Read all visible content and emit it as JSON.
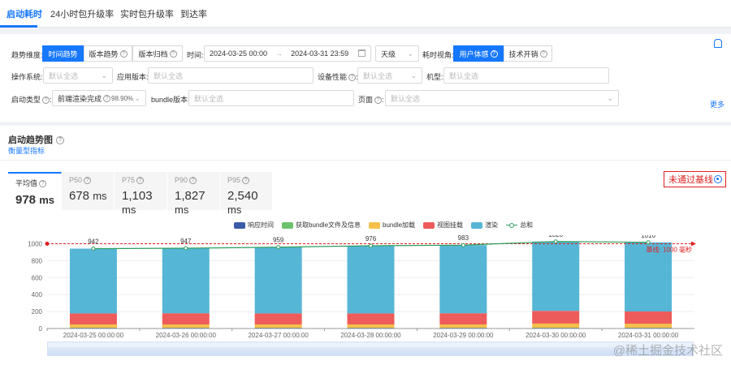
{
  "tabs": [
    "启动耗时",
    "24小时包升级率",
    "实时包升级率",
    "到达率"
  ],
  "filters": {
    "trend_dim_label": "趋势维度:",
    "trend_dims": [
      "时间趋势",
      "版本趋势",
      "版本归档"
    ],
    "time_label": "时间:",
    "time_start": "2024-03-25 00:00",
    "time_end": "2024-03-31 23:59",
    "granularity": "天级",
    "view_label": "耗时视角:",
    "views": [
      "用户体感",
      "技术开销"
    ],
    "os_label": "操作系统:",
    "os_placeholder": "默认全选",
    "app_version_label": "应用版本:",
    "app_version_placeholder": "默认全选",
    "device_perf_label": "设备性能",
    "device_perf_placeholder": "默认全选",
    "model_label": "机型:",
    "model_placeholder": "默认全选",
    "launch_type_label": "启动类型",
    "launch_type_value": "前端渲染完成",
    "launch_type_pct": "98.90%",
    "bundle_version_label": "bundle版本:",
    "bundle_version_placeholder": "默认全选",
    "page_label": "页面",
    "page_placeholder": "默认全选",
    "more": "更多"
  },
  "card": {
    "title": "启动趋势图",
    "link": "衡量型指标",
    "baseline_flag": "未通过基线"
  },
  "metrics": [
    {
      "name": "平均值",
      "value": "978",
      "unit": "ms"
    },
    {
      "name": "P50",
      "value": "678",
      "unit": "ms"
    },
    {
      "name": "P75",
      "value": "1,103",
      "unit": "ms"
    },
    {
      "name": "P90",
      "value": "1,827",
      "unit": "ms"
    },
    {
      "name": "P95",
      "value": "2,540",
      "unit": "ms"
    }
  ],
  "watermark": "@稀土掘金技术社区",
  "chart_data": {
    "type": "bar",
    "stacked": true,
    "categories": [
      "2024-03-25 00:00:00",
      "2024-03-26 00:00:00",
      "2024-03-27 00:00:00",
      "2024-03-28 00:00:00",
      "2024-03-29 00:00:00",
      "2024-03-30 00:00:00",
      "2024-03-31 00:00:00"
    ],
    "series": [
      {
        "name": "响应时间",
        "color": "#3b5aa8",
        "values": [
          5,
          5,
          5,
          5,
          5,
          5,
          5
        ]
      },
      {
        "name": "获取bundle文件及信息",
        "color": "#6cc36c",
        "values": [
          3,
          3,
          3,
          3,
          3,
          3,
          3
        ]
      },
      {
        "name": "bundle加载",
        "color": "#f5c04a",
        "values": [
          40,
          40,
          40,
          40,
          40,
          50,
          48
        ]
      },
      {
        "name": "视图挂载",
        "color": "#ee5b5b",
        "values": [
          130,
          132,
          130,
          130,
          132,
          150,
          145
        ]
      },
      {
        "name": "渲染",
        "color": "#56b6d6",
        "values": [
          764,
          767,
          781,
          798,
          803,
          818,
          815
        ]
      }
    ],
    "line": {
      "name": "总和",
      "color": "#2e9e5e",
      "values": [
        942,
        947,
        959,
        976,
        983,
        1026,
        1016
      ]
    },
    "baseline": {
      "value": 1000,
      "label": "基线: 1000 毫秒",
      "color": "#e02020"
    },
    "yticks": [
      "0",
      "200",
      "400",
      "600",
      "800",
      "1000"
    ],
    "ylim": [
      0,
      1100
    ],
    "legend_position": "top"
  }
}
